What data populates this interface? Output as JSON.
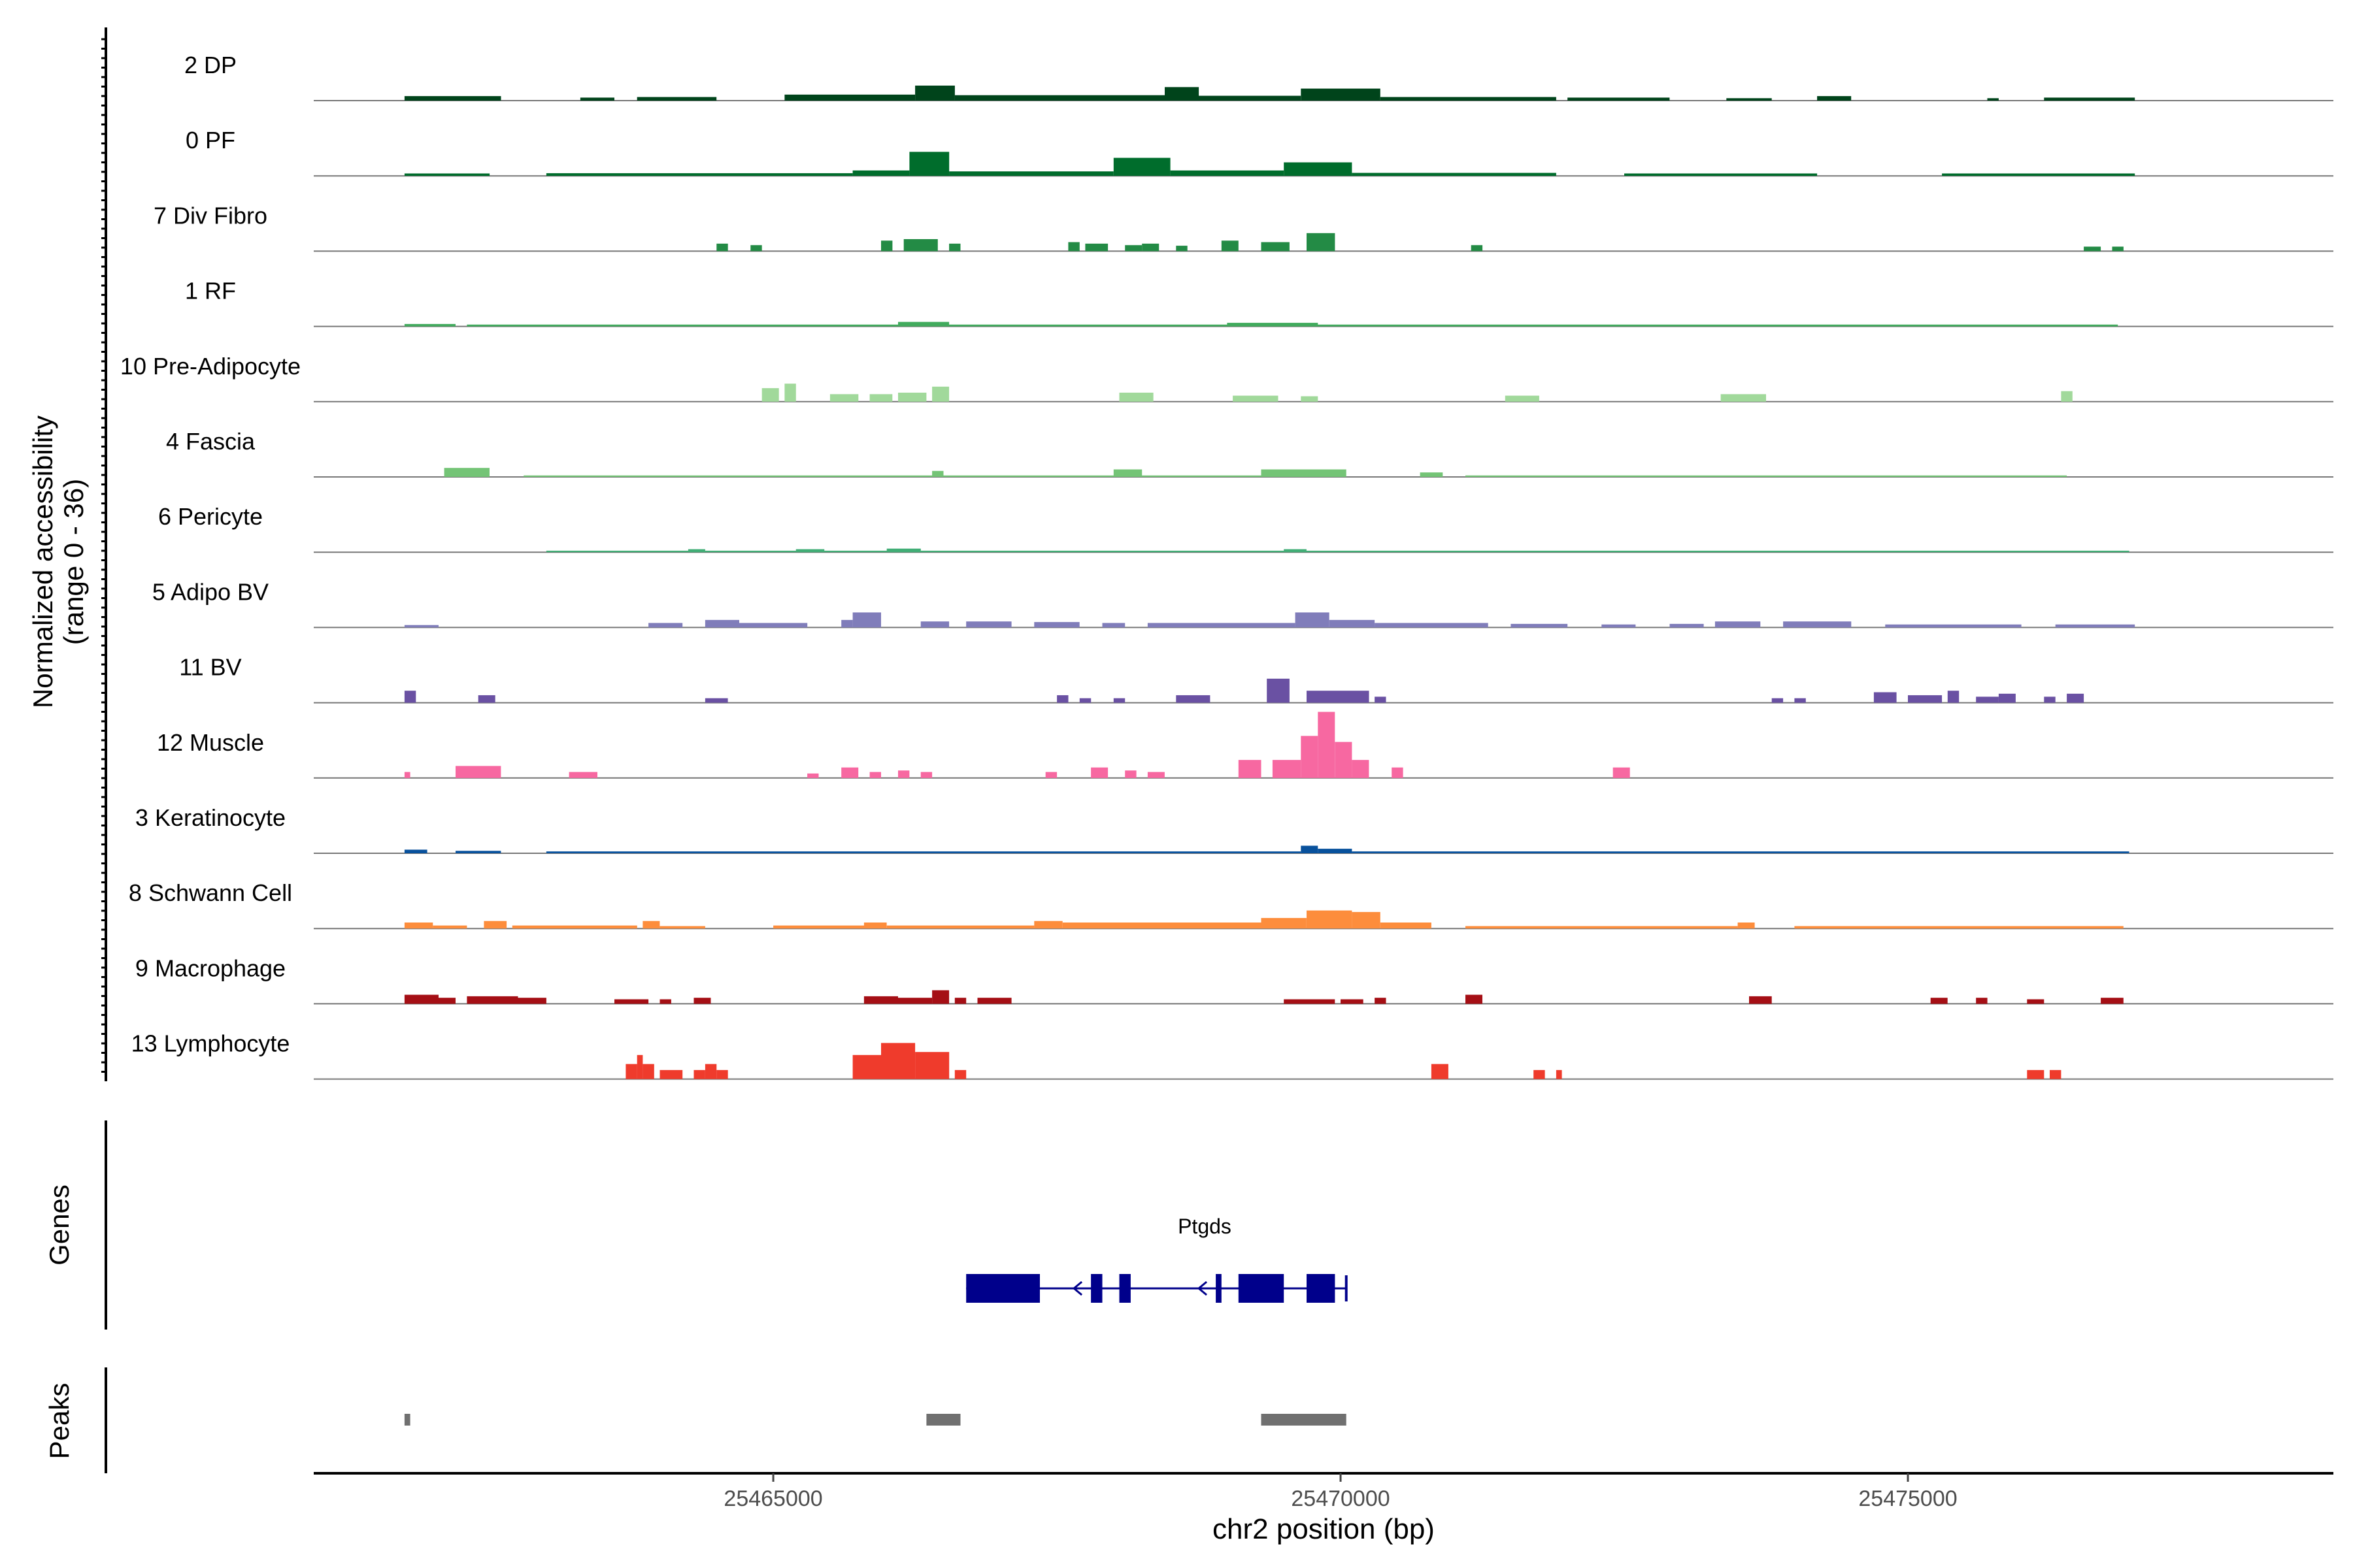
{
  "chart_data": {
    "type": "coverage-track",
    "ylabel_line1": "Normalized accessibility",
    "ylabel_line2": "(range 0 - 36)",
    "yrange": [
      0,
      36
    ],
    "xlabel": "chr2 position (bp)",
    "xlim": [
      25460950,
      25478750
    ],
    "xticks": [
      25465000,
      25470000,
      25475000
    ],
    "xtick_labels": [
      "25465000",
      "25470000",
      "25475000"
    ],
    "tracks": [
      {
        "label": "2 DP",
        "color": "#00441b",
        "regions": [
          [
            25461750,
            25462600,
            1.5
          ],
          [
            25463300,
            25463600,
            1
          ],
          [
            25463800,
            25464500,
            1.2
          ],
          [
            25465100,
            25466250,
            2
          ],
          [
            25466250,
            25466600,
            5
          ],
          [
            25466600,
            25468450,
            1.8
          ],
          [
            25468450,
            25468750,
            4.5
          ],
          [
            25468750,
            25469650,
            1.6
          ],
          [
            25469650,
            25470350,
            4
          ],
          [
            25470350,
            25471900,
            1.2
          ],
          [
            25472000,
            25472900,
            1
          ],
          [
            25473400,
            25473800,
            0.8
          ],
          [
            25474200,
            25474500,
            1.5
          ],
          [
            25475700,
            25475800,
            0.8
          ],
          [
            25476200,
            25477000,
            1
          ]
        ]
      },
      {
        "label": "0 PF",
        "color": "#006d2c",
        "regions": [
          [
            25461750,
            25462500,
            0.8
          ],
          [
            25463000,
            25465700,
            0.9
          ],
          [
            25465700,
            25466200,
            1.8
          ],
          [
            25466200,
            25466550,
            8
          ],
          [
            25466550,
            25468000,
            1.5
          ],
          [
            25468000,
            25468500,
            6
          ],
          [
            25468500,
            25469500,
            1.8
          ],
          [
            25469500,
            25470100,
            4.5
          ],
          [
            25470100,
            25471900,
            1
          ],
          [
            25472500,
            25474200,
            0.8
          ],
          [
            25475300,
            25477000,
            0.8
          ]
        ]
      },
      {
        "label": "7 Div Fibro",
        "color": "#238b45",
        "regions": [
          [
            25464500,
            25464600,
            2.5
          ],
          [
            25464800,
            25464900,
            2
          ],
          [
            25465950,
            25466050,
            3.5
          ],
          [
            25466150,
            25466450,
            4
          ],
          [
            25466550,
            25466650,
            2.5
          ],
          [
            25467600,
            25467700,
            3
          ],
          [
            25467750,
            25467950,
            2.5
          ],
          [
            25468100,
            25468250,
            2
          ],
          [
            25468250,
            25468400,
            2.5
          ],
          [
            25468550,
            25468650,
            1.8
          ],
          [
            25468950,
            25469100,
            3.5
          ],
          [
            25469300,
            25469550,
            3
          ],
          [
            25469700,
            25469950,
            6
          ],
          [
            25471150,
            25471250,
            2
          ],
          [
            25476550,
            25476700,
            1.5
          ],
          [
            25476800,
            25476900,
            1.5
          ]
        ]
      },
      {
        "label": "1 RF",
        "color": "#41ab5d",
        "regions": [
          [
            25461750,
            25462200,
            0.8
          ],
          [
            25462300,
            25476850,
            0.6
          ],
          [
            25466100,
            25466550,
            1.5
          ],
          [
            25469000,
            25469800,
            1.2
          ]
        ]
      },
      {
        "label": "10 Pre-Adipocyte",
        "color": "#a1d99b",
        "regions": [
          [
            25464900,
            25465050,
            4.5
          ],
          [
            25465100,
            25465200,
            6
          ],
          [
            25465500,
            25465750,
            2.5
          ],
          [
            25465850,
            25466050,
            2.5
          ],
          [
            25466100,
            25466350,
            3
          ],
          [
            25466400,
            25466550,
            5
          ],
          [
            25468050,
            25468350,
            3
          ],
          [
            25469050,
            25469450,
            2
          ],
          [
            25469650,
            25469800,
            1.8
          ],
          [
            25471450,
            25471750,
            2
          ],
          [
            25473350,
            25473750,
            2.5
          ],
          [
            25476350,
            25476450,
            3.5
          ]
        ]
      },
      {
        "label": "4 Fascia",
        "color": "#74c476",
        "regions": [
          [
            25462100,
            25462500,
            3
          ],
          [
            25462800,
            25469300,
            0.5
          ],
          [
            25466400,
            25466500,
            2
          ],
          [
            25468000,
            25468250,
            2.5
          ],
          [
            25469300,
            25470050,
            2.5
          ],
          [
            25470700,
            25470900,
            1.5
          ],
          [
            25471100,
            25476400,
            0.5
          ]
        ]
      },
      {
        "label": "6 Pericyte",
        "color": "#41ae76",
        "regions": [
          [
            25463000,
            25476950,
            0.5
          ],
          [
            25464250,
            25464400,
            1
          ],
          [
            25465200,
            25465450,
            1
          ],
          [
            25466000,
            25466300,
            1.2
          ],
          [
            25469500,
            25469700,
            1
          ]
        ]
      },
      {
        "label": "5 Adipo BV",
        "color": "#807dba",
        "regions": [
          [
            25461750,
            25462050,
            0.8
          ],
          [
            25463900,
            25464200,
            1.5
          ],
          [
            25464400,
            25464700,
            2.5
          ],
          [
            25464700,
            25465300,
            1.5
          ],
          [
            25465600,
            25465700,
            2.5
          ],
          [
            25465700,
            25465950,
            5
          ],
          [
            25466300,
            25466550,
            2
          ],
          [
            25466700,
            25467100,
            2
          ],
          [
            25467300,
            25467700,
            1.8
          ],
          [
            25467900,
            25468100,
            1.5
          ],
          [
            25468300,
            25469600,
            1.5
          ],
          [
            25469600,
            25469900,
            5
          ],
          [
            25469900,
            25470300,
            2.5
          ],
          [
            25470300,
            25471300,
            1.5
          ],
          [
            25471500,
            25472000,
            1.2
          ],
          [
            25472300,
            25472600,
            1
          ],
          [
            25472900,
            25473200,
            1.2
          ],
          [
            25473300,
            25473700,
            2
          ],
          [
            25473900,
            25474500,
            2
          ],
          [
            25474800,
            25476000,
            1
          ],
          [
            25476300,
            25477000,
            1
          ]
        ]
      },
      {
        "label": "11 BV",
        "color": "#6a51a3",
        "regions": [
          [
            25461750,
            25461850,
            4
          ],
          [
            25462400,
            25462550,
            2.5
          ],
          [
            25464400,
            25464600,
            1.5
          ],
          [
            25467500,
            25467600,
            2.5
          ],
          [
            25467700,
            25467800,
            1.5
          ],
          [
            25468000,
            25468100,
            1.5
          ],
          [
            25468550,
            25468850,
            2.5
          ],
          [
            25469350,
            25469550,
            8
          ],
          [
            25469700,
            25470250,
            4
          ],
          [
            25470300,
            25470400,
            2
          ],
          [
            25473800,
            25473900,
            1.5
          ],
          [
            25474000,
            25474100,
            1.5
          ],
          [
            25474700,
            25474900,
            3.5
          ],
          [
            25475000,
            25475300,
            2.5
          ],
          [
            25475350,
            25475450,
            4
          ],
          [
            25475600,
            25475800,
            2
          ],
          [
            25475800,
            25475950,
            3
          ],
          [
            25476200,
            25476300,
            2
          ],
          [
            25476400,
            25476550,
            3
          ]
        ]
      },
      {
        "label": "12 Muscle",
        "color": "#f768a1",
        "regions": [
          [
            25461750,
            25461800,
            2
          ],
          [
            25462200,
            25462600,
            4
          ],
          [
            25463200,
            25463450,
            2
          ],
          [
            25465300,
            25465400,
            1.5
          ],
          [
            25465600,
            25465750,
            3.5
          ],
          [
            25465850,
            25465950,
            2
          ],
          [
            25466100,
            25466200,
            2.5
          ],
          [
            25466300,
            25466400,
            2
          ],
          [
            25467400,
            25467500,
            2
          ],
          [
            25467800,
            25467950,
            3.5
          ],
          [
            25468100,
            25468200,
            2.5
          ],
          [
            25468300,
            25468450,
            2
          ],
          [
            25469100,
            25469300,
            6
          ],
          [
            25469400,
            25469650,
            6
          ],
          [
            25469650,
            25469800,
            14
          ],
          [
            25469800,
            25469950,
            22
          ],
          [
            25469950,
            25470100,
            12
          ],
          [
            25470100,
            25470250,
            6
          ],
          [
            25470450,
            25470550,
            3.5
          ],
          [
            25472400,
            25472550,
            3.5
          ]
        ]
      },
      {
        "label": "3 Keratinocyte",
        "color": "#08519c",
        "regions": [
          [
            25461750,
            25461950,
            1.2
          ],
          [
            25462200,
            25462600,
            0.8
          ],
          [
            25463000,
            25469650,
            0.6
          ],
          [
            25469650,
            25469800,
            2.5
          ],
          [
            25469800,
            25470100,
            1.5
          ],
          [
            25470100,
            25476950,
            0.6
          ]
        ]
      },
      {
        "label": "8 Schwann Cell",
        "color": "#fd8d3c",
        "regions": [
          [
            25461750,
            25462000,
            2
          ],
          [
            25462000,
            25462300,
            1
          ],
          [
            25462450,
            25462650,
            2.5
          ],
          [
            25462700,
            25463800,
            1
          ],
          [
            25463850,
            25464000,
            2.5
          ],
          [
            25464000,
            25464400,
            0.8
          ],
          [
            25465000,
            25465800,
            1
          ],
          [
            25465800,
            25466000,
            2
          ],
          [
            25466000,
            25467300,
            1
          ],
          [
            25467300,
            25467550,
            2.5
          ],
          [
            25467550,
            25469300,
            2
          ],
          [
            25469300,
            25469700,
            3.5
          ],
          [
            25469700,
            25470100,
            6
          ],
          [
            25470100,
            25470350,
            5.5
          ],
          [
            25470350,
            25470800,
            2
          ],
          [
            25471100,
            25473500,
            0.8
          ],
          [
            25473500,
            25473650,
            2
          ],
          [
            25474000,
            25476900,
            0.8
          ]
        ]
      },
      {
        "label": "9 Macrophage",
        "color": "#a50f15",
        "regions": [
          [
            25461750,
            25462050,
            3
          ],
          [
            25462050,
            25462200,
            2
          ],
          [
            25462300,
            25462750,
            2.5
          ],
          [
            25462750,
            25463000,
            2
          ],
          [
            25463600,
            25463900,
            1.5
          ],
          [
            25464000,
            25464100,
            1.5
          ],
          [
            25464300,
            25464450,
            2
          ],
          [
            25465800,
            25466100,
            2.5
          ],
          [
            25466100,
            25466400,
            2
          ],
          [
            25466400,
            25466550,
            4.5
          ],
          [
            25466600,
            25466700,
            2
          ],
          [
            25466800,
            25467100,
            2
          ],
          [
            25469500,
            25469950,
            1.5
          ],
          [
            25470000,
            25470200,
            1.5
          ],
          [
            25470300,
            25470400,
            2
          ],
          [
            25471100,
            25471250,
            3
          ],
          [
            25473600,
            25473800,
            2.5
          ],
          [
            25475200,
            25475350,
            2
          ],
          [
            25475600,
            25475700,
            2
          ],
          [
            25476050,
            25476200,
            1.5
          ],
          [
            25476700,
            25476900,
            2
          ]
        ]
      },
      {
        "label": "13 Lymphocyte",
        "color": "#ef3b2c",
        "regions": [
          [
            25463700,
            25463800,
            5
          ],
          [
            25463800,
            25463850,
            8
          ],
          [
            25463850,
            25463950,
            5
          ],
          [
            25464000,
            25464200,
            3
          ],
          [
            25464300,
            25464400,
            3
          ],
          [
            25464400,
            25464500,
            5
          ],
          [
            25464500,
            25464600,
            3
          ],
          [
            25465700,
            25465950,
            8
          ],
          [
            25465950,
            25466250,
            12
          ],
          [
            25466250,
            25466550,
            9
          ],
          [
            25466600,
            25466700,
            3
          ],
          [
            25470800,
            25470950,
            5
          ],
          [
            25471700,
            25471800,
            3
          ],
          [
            25471900,
            25471950,
            3
          ],
          [
            25476050,
            25476200,
            3
          ],
          [
            25476250,
            25476350,
            3
          ]
        ]
      }
    ],
    "genes_label": "Genes",
    "gene": {
      "name": "Ptgds",
      "start": 25466700,
      "end": 25470050,
      "exons": [
        [
          25466700,
          25467350
        ],
        [
          25467800,
          25467900
        ],
        [
          25468050,
          25468150
        ],
        [
          25468900,
          25468950
        ],
        [
          25469100,
          25469500
        ],
        [
          25469700,
          25469950
        ]
      ],
      "arrows": [
        25467650,
        25468750
      ],
      "color": "#00008b"
    },
    "peaks_label": "Peaks",
    "peaks": [
      [
        25461750,
        25461800
      ],
      [
        25466350,
        25466650
      ],
      [
        25469300,
        25470050
      ]
    ],
    "peak_color": "#707070"
  }
}
